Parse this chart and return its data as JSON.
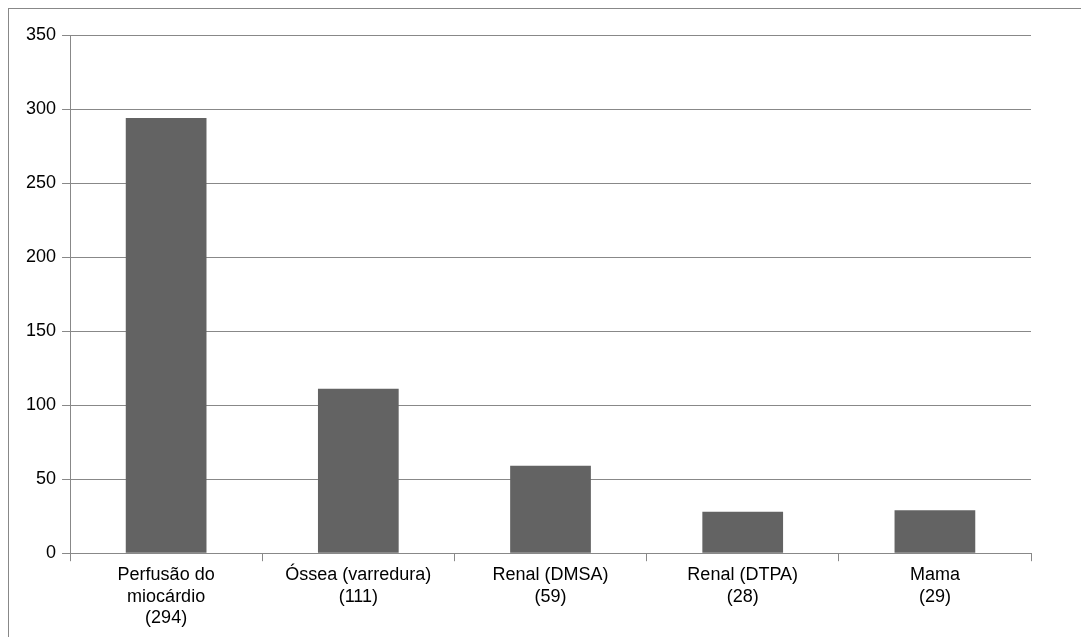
{
  "chart_data": {
    "type": "bar",
    "categories": [
      "Perfusão do\nmiocárdio\n(294)",
      "Óssea (varredura)\n(111)",
      "Renal (DMSA)\n(59)",
      "Renal (DTPA)\n(28)",
      "Mama\n(29)"
    ],
    "values": [
      294,
      111,
      59,
      28,
      29
    ],
    "color": "#636363",
    "ylim": [
      0,
      350
    ],
    "yticks": [
      0,
      50,
      100,
      150,
      200,
      250,
      300,
      350
    ],
    "grid": "y",
    "legend": false
  }
}
